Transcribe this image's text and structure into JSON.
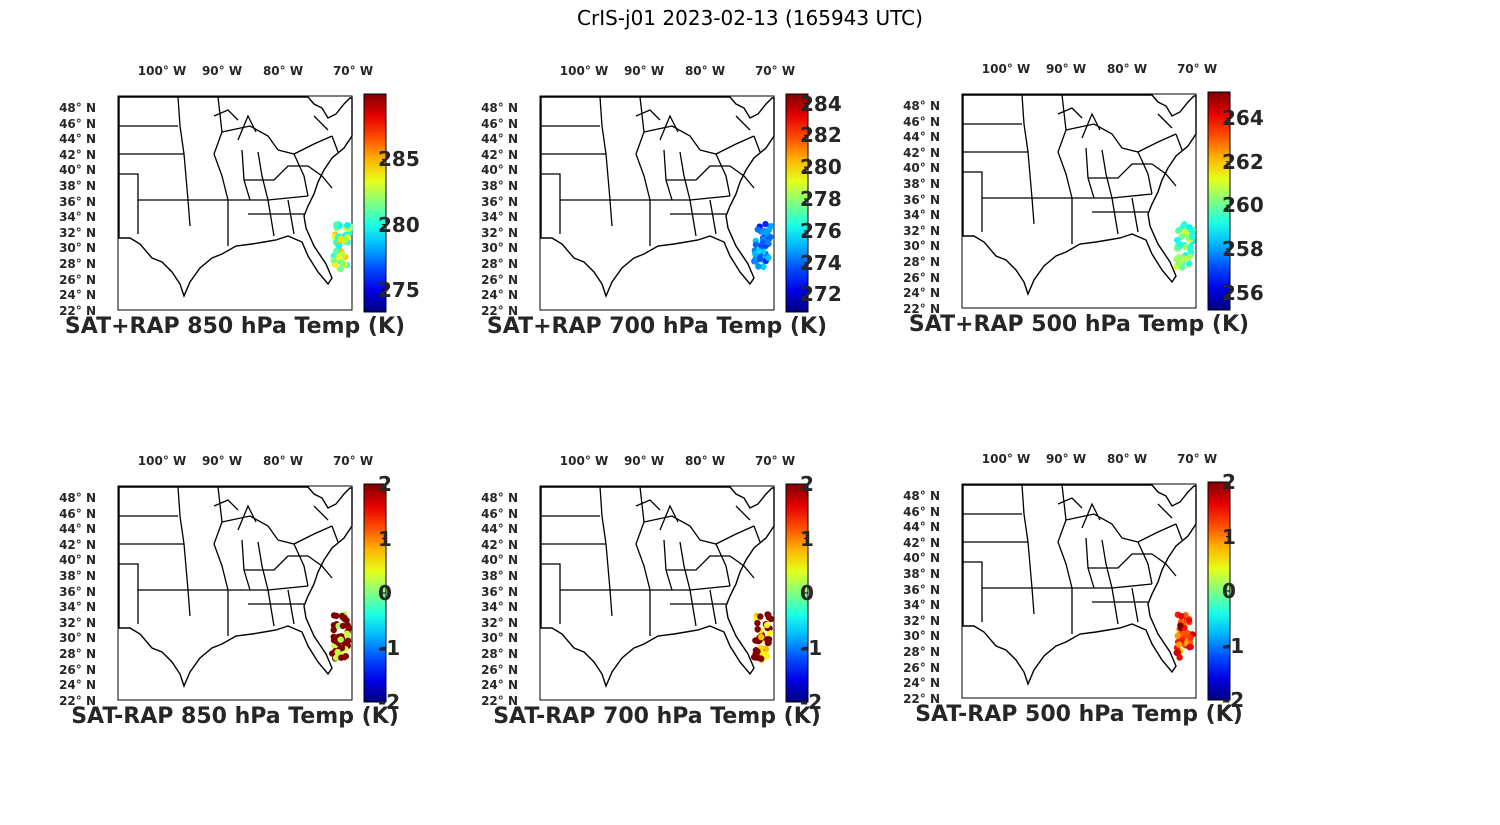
{
  "title": "CrIS-j01 2023-02-13 (165943 UTC)",
  "lon_labels": [
    "100° W",
    "90° W",
    "80° W",
    "70° W"
  ],
  "lat_labels": [
    "48° N",
    "46° N",
    "44° N",
    "42° N",
    "40° N",
    "38° N",
    "36° N",
    "34° N",
    "32° N",
    "30° N",
    "28° N",
    "26° N",
    "24° N",
    "22° N"
  ],
  "colormap": "jet",
  "panels": [
    {
      "title": "SAT+RAP 850 hPa Temp (K)",
      "colorbar_ticks": [
        "285",
        "280",
        "275"
      ],
      "colorbar_range": [
        273.3,
        290.0
      ],
      "tick_values": [
        285,
        280,
        275
      ]
    },
    {
      "title": "SAT+RAP 700 hPa Temp (K)",
      "colorbar_ticks": [
        "284",
        "282",
        "280",
        "278",
        "276",
        "274",
        "272"
      ],
      "colorbar_range": [
        270.9,
        284.6
      ],
      "tick_values": [
        284,
        282,
        280,
        278,
        276,
        274,
        272
      ]
    },
    {
      "title": "SAT+RAP 500 hPa Temp (K)",
      "colorbar_ticks": [
        "264",
        "262",
        "260",
        "258",
        "256"
      ],
      "colorbar_range": [
        255.2,
        265.2
      ],
      "tick_values": [
        264,
        262,
        260,
        258,
        256
      ]
    },
    {
      "title": "SAT-RAP 850 hPa Temp (K)",
      "colorbar_ticks": [
        "2",
        "1",
        "0",
        "-1",
        "-2"
      ],
      "colorbar_range": [
        -2,
        2
      ],
      "tick_values": [
        2,
        1,
        0,
        -1,
        -2
      ]
    },
    {
      "title": "SAT-RAP 700 hPa Temp (K)",
      "colorbar_ticks": [
        "2",
        "1",
        "0",
        "-1",
        "-2"
      ],
      "colorbar_range": [
        -2,
        2
      ],
      "tick_values": [
        2,
        1,
        0,
        -1,
        -2
      ]
    },
    {
      "title": "SAT-RAP 500 hPa Temp (K)",
      "colorbar_ticks": [
        "2",
        "1",
        "0",
        "-1",
        "-2"
      ],
      "colorbar_range": [
        -2,
        2
      ],
      "tick_values": [
        2,
        1,
        0,
        -1,
        -2
      ]
    }
  ]
}
